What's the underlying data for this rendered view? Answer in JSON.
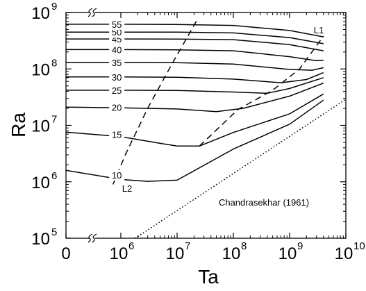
{
  "chart_data": {
    "type": "line",
    "xlabel": "Ta",
    "ylabel": "Ra",
    "x_scale": "log",
    "y_scale": "log",
    "x_range": [
      100000,
      10000000000
    ],
    "y_range": [
      100000,
      1000000000
    ],
    "x_ticks": [
      {
        "value": 0,
        "base": "0",
        "exp": ""
      },
      {
        "value": 1000000,
        "base": "10",
        "exp": "6"
      },
      {
        "value": 10000000,
        "base": "10",
        "exp": "7"
      },
      {
        "value": 100000000,
        "base": "10",
        "exp": "8"
      },
      {
        "value": 1000000000,
        "base": "10",
        "exp": "9"
      },
      {
        "value": 10000000000,
        "base": "10",
        "exp": "10"
      }
    ],
    "y_ticks": [
      {
        "value": 100000,
        "base": "10",
        "exp": "5"
      },
      {
        "value": 1000000,
        "base": "10",
        "exp": "6"
      },
      {
        "value": 10000000,
        "base": "10",
        "exp": "7"
      },
      {
        "value": 100000000,
        "base": "10",
        "exp": "8"
      },
      {
        "value": 1000000000,
        "base": "10",
        "exp": "9"
      }
    ],
    "axis_break": true,
    "grid": false,
    "series": [
      {
        "label": "10",
        "style": "solid",
        "points": [
          [
            0,
            1600000.0
          ],
          [
            1000000.0,
            1100000.0
          ],
          [
            3000000.0,
            1020000.0
          ],
          [
            10000000.0,
            1070000.0
          ],
          [
            100000000.0,
            3800000.0
          ],
          [
            1000000000.0,
            10500000.0
          ],
          [
            4000000000.0,
            28000000.0
          ]
        ]
      },
      {
        "label": "15",
        "style": "solid",
        "points": [
          [
            0,
            7600000.0
          ],
          [
            1000000.0,
            6300000.0
          ],
          [
            5000000.0,
            4800000.0
          ],
          [
            10000000.0,
            4300000.0
          ],
          [
            25000000.0,
            4300000.0
          ],
          [
            100000000.0,
            7500000.0
          ],
          [
            1000000000.0,
            16000000.0
          ],
          [
            4000000000.0,
            36000000.0
          ]
        ]
      },
      {
        "label": "20",
        "style": "solid",
        "points": [
          [
            0,
            21000000.0
          ],
          [
            1000000.0,
            20500000.0
          ],
          [
            10000000.0,
            19500000.0
          ],
          [
            50000000.0,
            17500000.0
          ],
          [
            150000000.0,
            20000000.0
          ],
          [
            1000000000.0,
            33000000.0
          ],
          [
            4000000000.0,
            56000000.0
          ]
        ]
      },
      {
        "label": "25",
        "style": "solid",
        "points": [
          [
            0,
            42000000.0
          ],
          [
            1000000.0,
            42000000.0
          ],
          [
            10000000.0,
            41500000.0
          ],
          [
            100000000.0,
            39000000.0
          ],
          [
            400000000.0,
            37000000.0
          ],
          [
            1000000000.0,
            45000000.0
          ],
          [
            4000000000.0,
            70000000.0
          ]
        ]
      },
      {
        "label": "30",
        "style": "solid",
        "points": [
          [
            0,
            72000000.0
          ],
          [
            1000000.0,
            72000000.0
          ],
          [
            10000000.0,
            71000000.0
          ],
          [
            100000000.0,
            66000000.0
          ],
          [
            700000000.0,
            57000000.0
          ],
          [
            2000000000.0,
            65000000.0
          ],
          [
            4000000000.0,
            86000000.0
          ]
        ]
      },
      {
        "label": "35",
        "style": "solid",
        "points": [
          [
            0,
            130000000.0
          ],
          [
            1000000.0,
            130000000.0
          ],
          [
            10000000.0,
            129000000.0
          ],
          [
            100000000.0,
            122000000.0
          ],
          [
            1000000000.0,
            98000000.0
          ],
          [
            2500000000.0,
            95000000.0
          ],
          [
            4000000000.0,
            105000000.0
          ]
        ]
      },
      {
        "label": "40",
        "style": "solid",
        "points": [
          [
            0,
            220000000.0
          ],
          [
            1000000.0,
            220000000.0
          ],
          [
            10000000.0,
            218000000.0
          ],
          [
            100000000.0,
            210000000.0
          ],
          [
            1000000000.0,
            165000000.0
          ],
          [
            3000000000.0,
            140000000.0
          ],
          [
            4000000000.0,
            142000000.0
          ]
        ]
      },
      {
        "label": "45",
        "style": "solid",
        "points": [
          [
            0,
            340000000.0
          ],
          [
            1000000.0,
            340000000.0
          ],
          [
            10000000.0,
            338000000.0
          ],
          [
            100000000.0,
            330000000.0
          ],
          [
            1000000000.0,
            270000000.0
          ],
          [
            4000000000.0,
            210000000.0
          ]
        ]
      },
      {
        "label": "50",
        "style": "solid",
        "points": [
          [
            0,
            450000000.0
          ],
          [
            1000000.0,
            450000000.0
          ],
          [
            10000000.0,
            448000000.0
          ],
          [
            100000000.0,
            435000000.0
          ],
          [
            1000000000.0,
            360000000.0
          ],
          [
            4000000000.0,
            280000000.0
          ]
        ]
      },
      {
        "label": "55",
        "style": "solid",
        "points": [
          [
            0,
            620000000.0
          ],
          [
            1000000.0,
            620000000.0
          ],
          [
            10000000.0,
            615000000.0
          ],
          [
            100000000.0,
            590000000.0
          ],
          [
            1000000000.0,
            480000000.0
          ],
          [
            4000000000.0,
            370000000.0
          ]
        ]
      },
      {
        "label": "L1",
        "style": "dashed",
        "points": [
          [
            25000000.0,
            4300000.0
          ],
          [
            120000000.0,
            19000000.0
          ],
          [
            500000000.0,
            42000000.0
          ],
          [
            1500000000.0,
            100000000.0
          ],
          [
            4000000000.0,
            380000000.0
          ]
        ]
      },
      {
        "label": "L2",
        "style": "dashed",
        "points": [
          [
            800000.0,
            900000.0
          ],
          [
            1200000.0,
            3000000.0
          ],
          [
            3000000.0,
            20000000.0
          ],
          [
            8000000.0,
            120000000.0
          ],
          [
            22000000.0,
            700000000.0
          ]
        ]
      },
      {
        "label": "Chandrasekhar (1961)",
        "style": "dotted",
        "points": [
          [
            1800000.0,
            100000.0
          ],
          [
            10000000000.0,
            29000000.0
          ]
        ]
      }
    ]
  }
}
